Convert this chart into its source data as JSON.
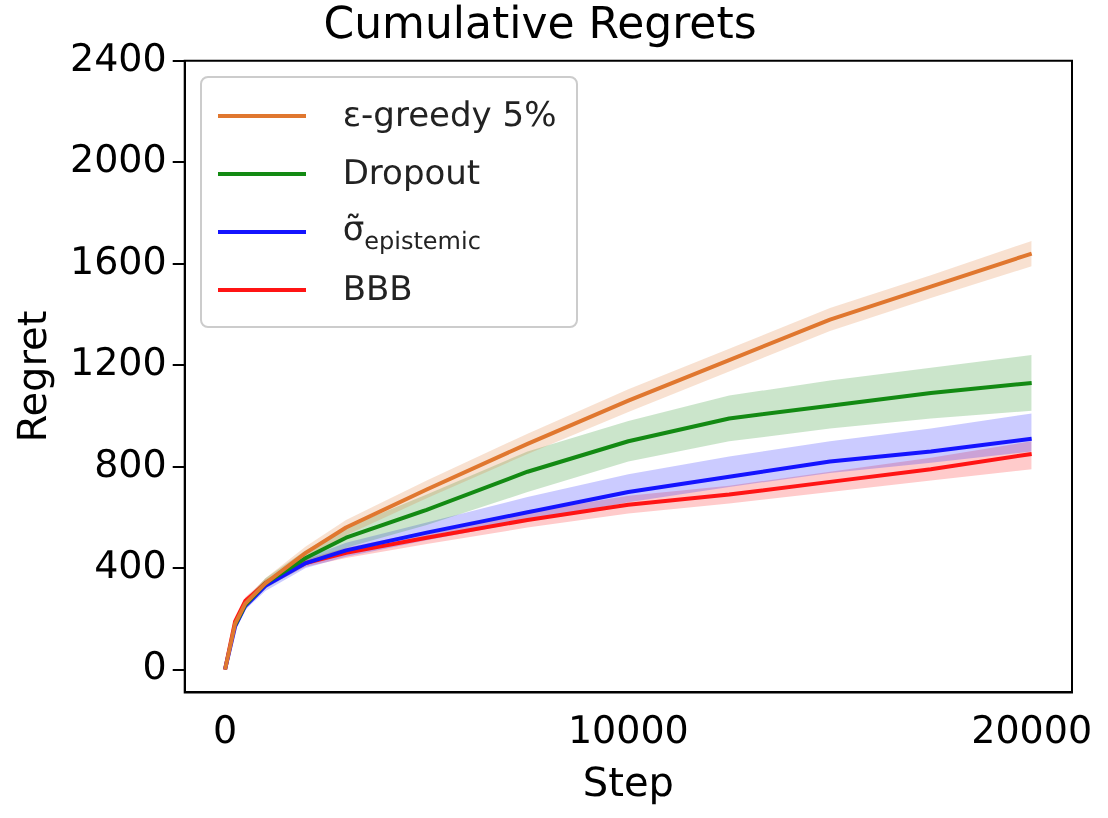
{
  "chart_data": {
    "type": "line",
    "title": "Cumulative Regrets",
    "xlabel": "Step",
    "ylabel": "Regret",
    "x": [
      0,
      250,
      500,
      1000,
      2000,
      3000,
      5000,
      7500,
      10000,
      12500,
      15000,
      17500,
      20000
    ],
    "xlim": [
      -1000,
      21000
    ],
    "xticks": [
      0,
      10000,
      20000
    ],
    "ylim": [
      -90,
      2400
    ],
    "yticks": [
      0,
      400,
      800,
      1200,
      1600,
      2000,
      2400
    ],
    "grid": false,
    "legend": "top left",
    "marker": "none",
    "line_style": "solid",
    "series": [
      {
        "name": "ε-greedy 5%",
        "color": "#e0772f",
        "values": [
          0,
          180,
          260,
          340,
          460,
          560,
          710,
          890,
          1060,
          1220,
          1380,
          1510,
          1640
        ],
        "lower": [
          0,
          170,
          245,
          320,
          435,
          530,
          675,
          850,
          1015,
          1175,
          1335,
          1465,
          1590
        ],
        "upper": [
          0,
          190,
          275,
          360,
          485,
          590,
          745,
          930,
          1105,
          1265,
          1425,
          1555,
          1690
        ]
      },
      {
        "name": "Dropout",
        "color": "#138a13",
        "values": [
          null,
          176,
          255,
          340,
          440,
          520,
          630,
          780,
          900,
          990,
          1040,
          1090,
          1130
        ],
        "lower": [
          0,
          170,
          245,
          320,
          410,
          480,
          570,
          700,
          820,
          900,
          950,
          990,
          1020
        ],
        "upper": [
          0,
          190,
          275,
          360,
          470,
          560,
          690,
          860,
          980,
          1080,
          1140,
          1190,
          1240
        ]
      },
      {
        "name": "σ̃$_{epistemic}$",
        "color": "#1414ff",
        "values": [
          0,
          170,
          250,
          330,
          420,
          470,
          540,
          620,
          700,
          760,
          820,
          860,
          910
        ],
        "lower": [
          0,
          155,
          235,
          310,
          400,
          445,
          510,
          585,
          660,
          720,
          775,
          815,
          860
        ],
        "upper": [
          0,
          185,
          265,
          350,
          440,
          500,
          580,
          680,
          770,
          840,
          900,
          950,
          1010
        ]
      },
      {
        "name": "BBB",
        "color": "#ff1414",
        "values": [
          0,
          190,
          270,
          340,
          420,
          460,
          520,
          590,
          650,
          690,
          740,
          790,
          850
        ],
        "lower": [
          0,
          180,
          255,
          325,
          405,
          440,
          495,
          560,
          615,
          655,
          700,
          745,
          790
        ],
        "upper": [
          0,
          200,
          285,
          355,
          435,
          480,
          545,
          620,
          685,
          725,
          780,
          835,
          900
        ]
      }
    ]
  }
}
